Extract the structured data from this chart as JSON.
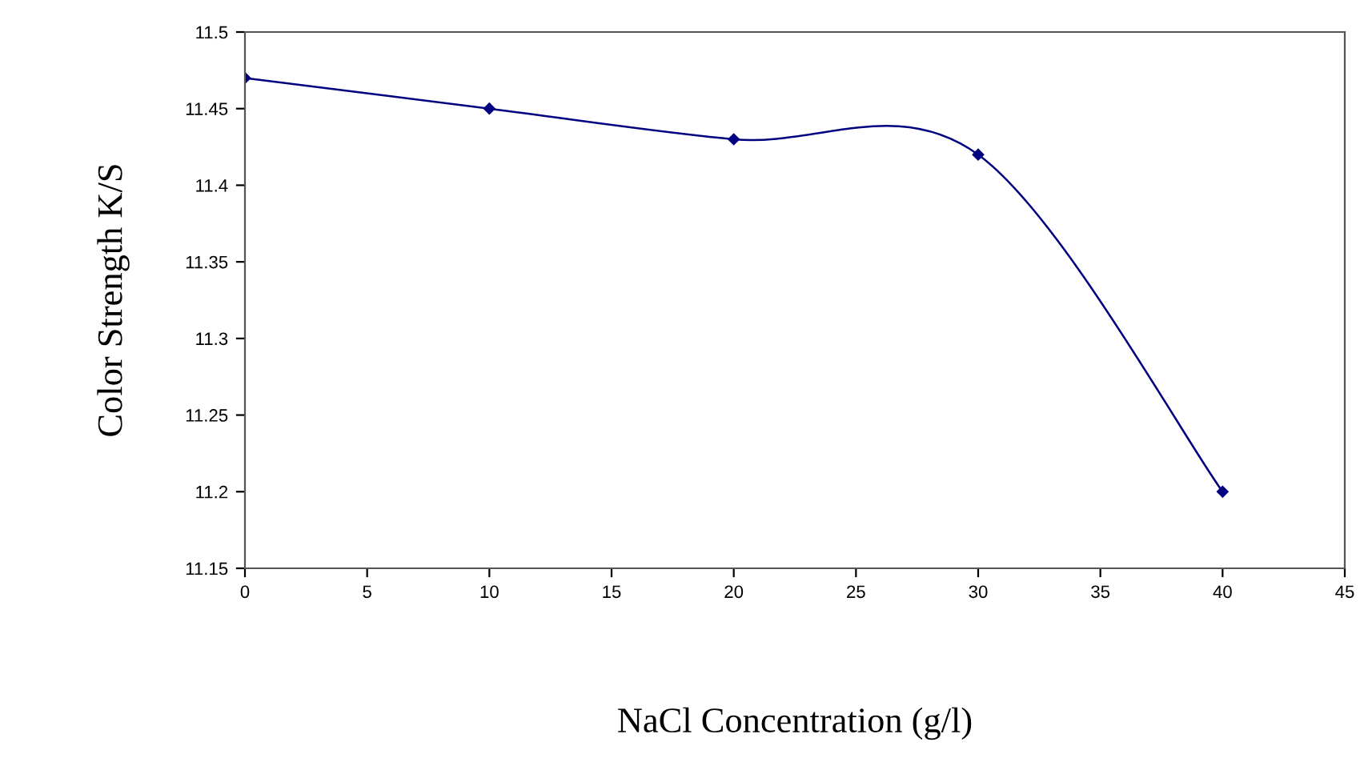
{
  "chart_data": {
    "type": "line",
    "xlabel": "NaCl Concentration (g/l)",
    "ylabel": "Color Strength K/S",
    "x": [
      0,
      10,
      20,
      30,
      40
    ],
    "series": [
      {
        "color": "#000080",
        "values": [
          11.47,
          11.45,
          11.43,
          11.42,
          11.2
        ]
      }
    ],
    "xlim": [
      0,
      45
    ],
    "xticks": [
      0,
      5,
      10,
      15,
      20,
      25,
      30,
      35,
      40,
      45
    ],
    "ylim": [
      11.15,
      11.5
    ],
    "yticks": [
      11.15,
      11.2,
      11.25,
      11.3,
      11.35,
      11.4,
      11.45,
      11.5
    ],
    "marker": "diamond",
    "line_style": "solid",
    "grid": false,
    "legend": false
  }
}
